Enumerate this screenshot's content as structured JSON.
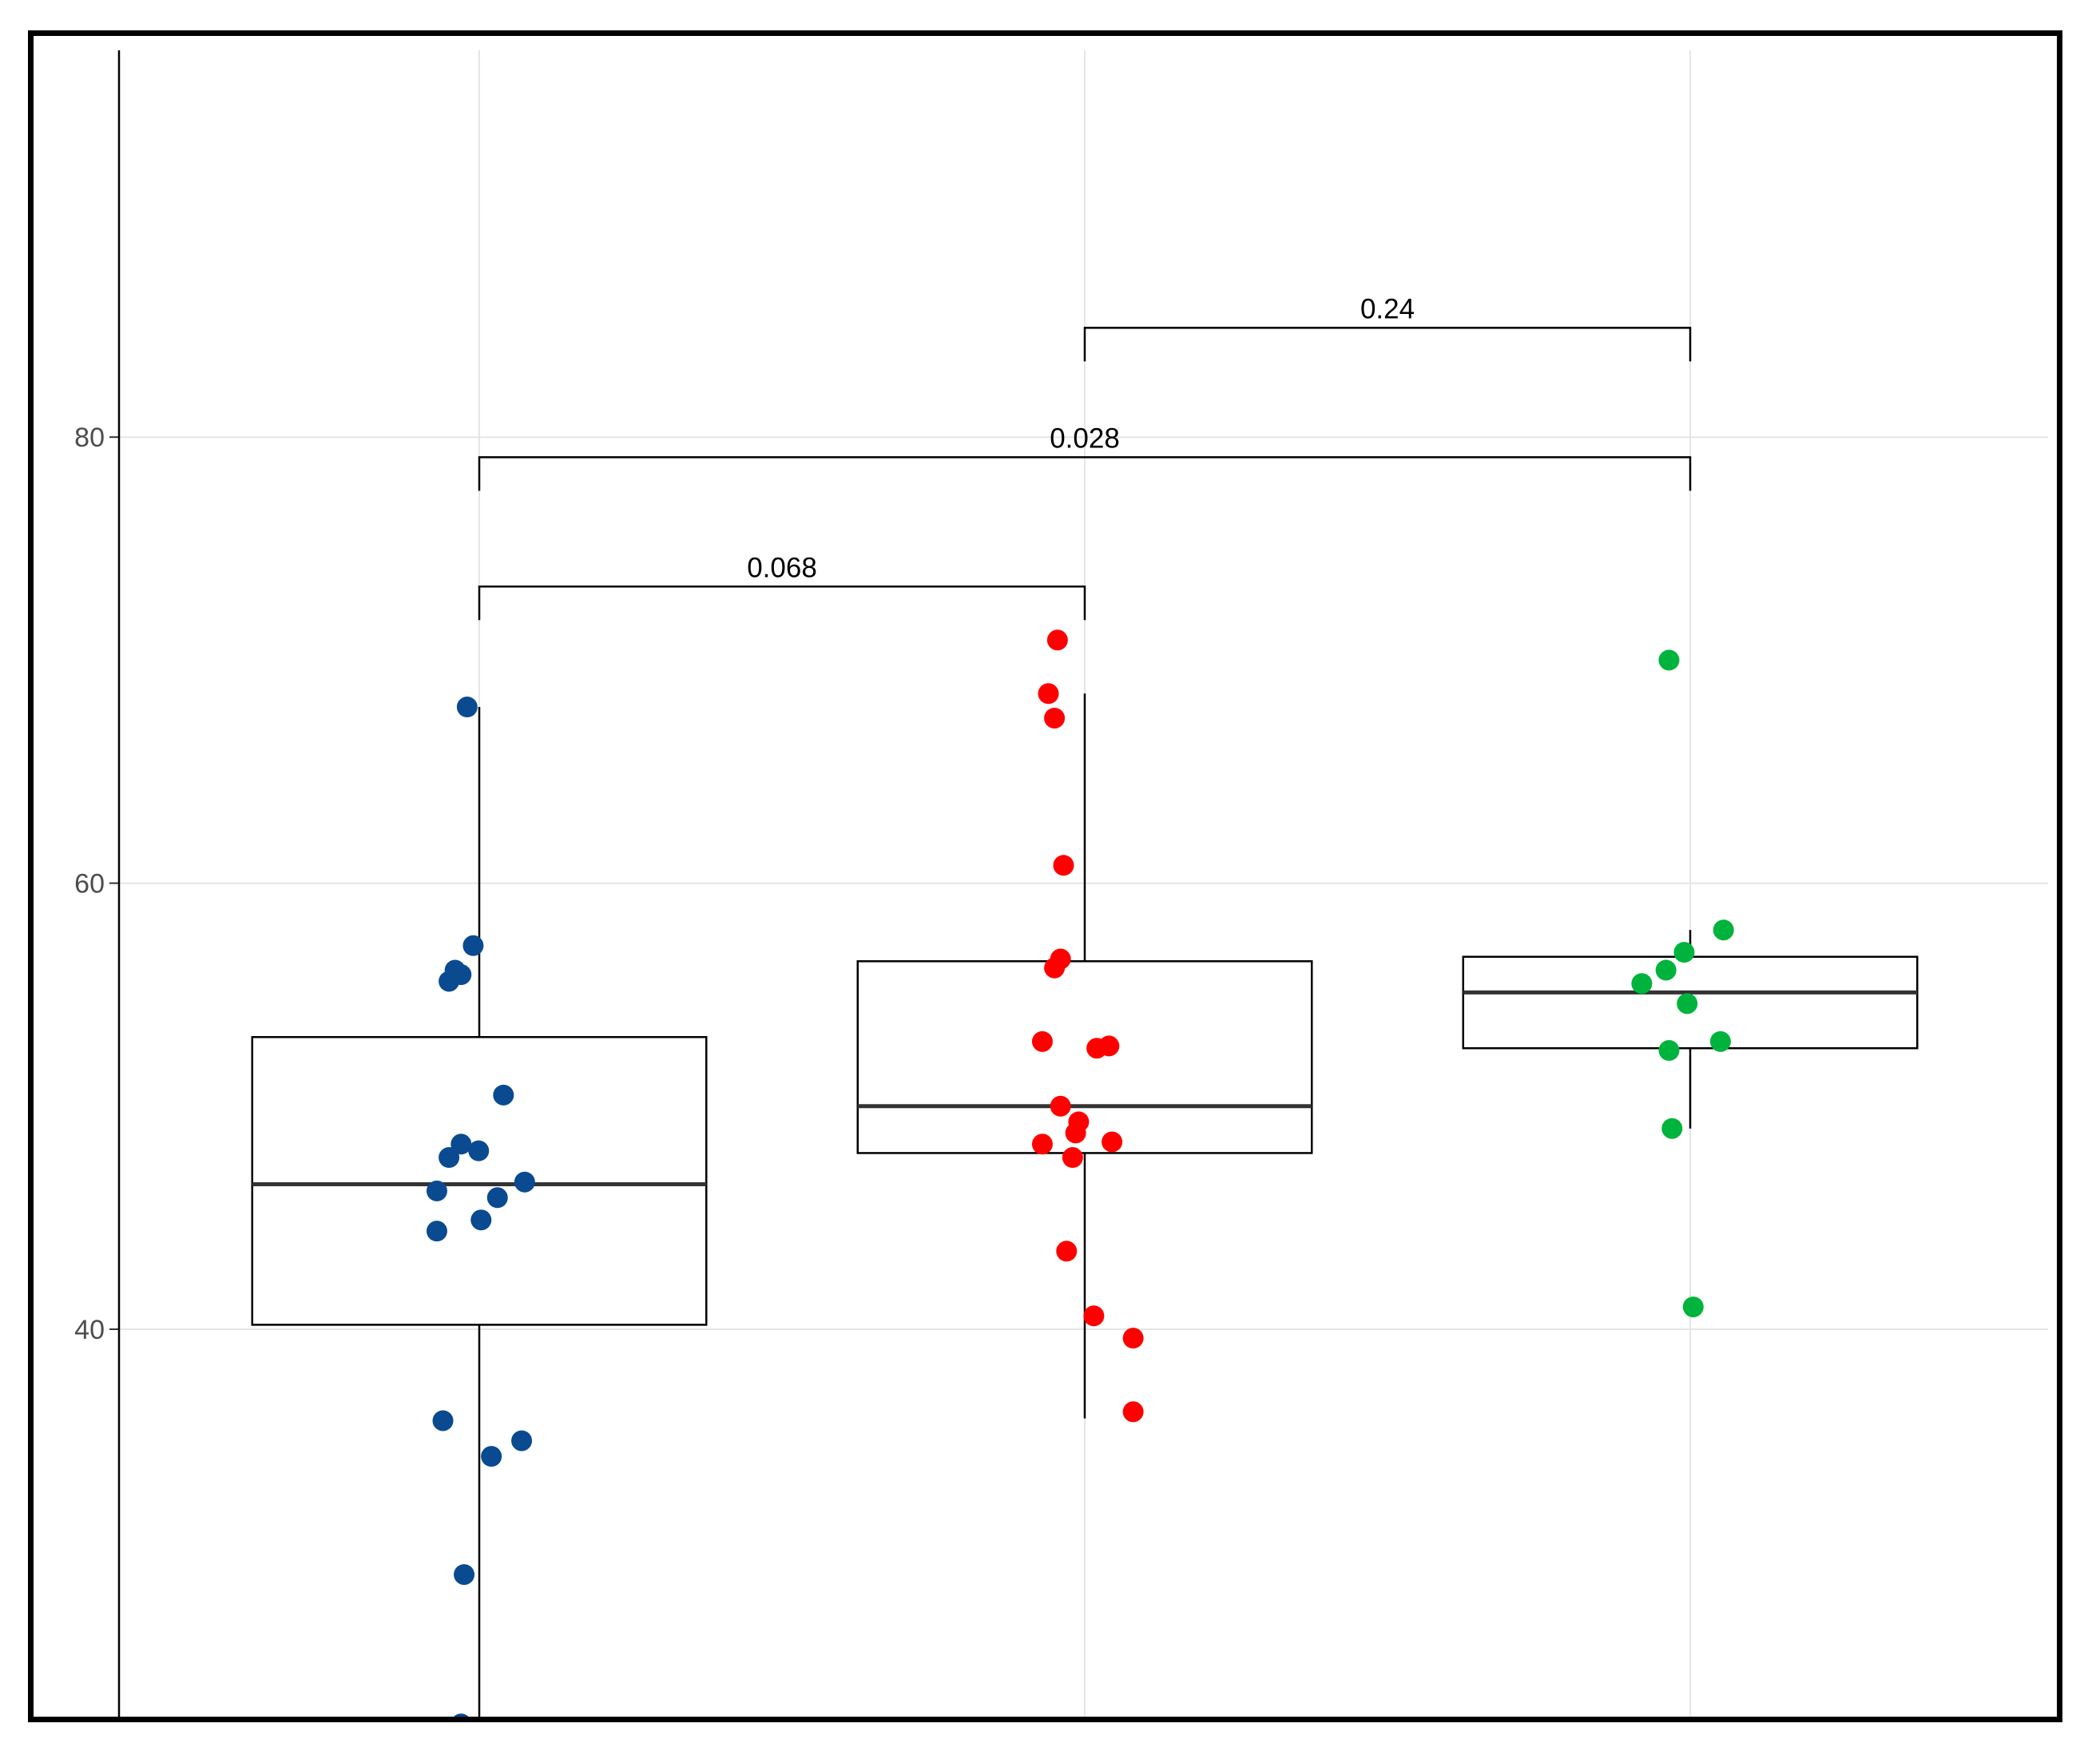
{
  "chart_data": {
    "type": "boxplot",
    "title": "",
    "xlabel": "",
    "ylabel": "",
    "ylim": [
      22.3,
      97.5
    ],
    "y_ticks": [
      40,
      60,
      80
    ],
    "grid": true,
    "groups": [
      {
        "color": "#0a4a91",
        "box": {
          "whisker_low": 22.3,
          "q1": 40.2,
          "median": 46.5,
          "q3": 53.1,
          "whisker_high": 67.9
        },
        "points": [
          [
            -0.02,
            67.9
          ],
          [
            -0.01,
            57.2
          ],
          [
            -0.04,
            56.1
          ],
          [
            -0.03,
            55.9
          ],
          [
            -0.05,
            55.6
          ],
          [
            0.04,
            50.5
          ],
          [
            -0.03,
            48.3
          ],
          [
            -0.05,
            47.7
          ],
          [
            -0.001,
            48.0
          ],
          [
            0.075,
            46.6
          ],
          [
            -0.07,
            46.2
          ],
          [
            0.03,
            45.9
          ],
          [
            0.003,
            44.9
          ],
          [
            -0.07,
            44.4
          ],
          [
            -0.06,
            35.9
          ],
          [
            0.07,
            35.0
          ],
          [
            0.02,
            34.3
          ],
          [
            -0.025,
            29.0
          ],
          [
            -0.03,
            22.3
          ]
        ]
      },
      {
        "color": "#ff0000",
        "box": {
          "whisker_low": 36.0,
          "q1": 47.9,
          "median": 50.0,
          "q3": 56.5,
          "whisker_high": 68.5
        },
        "points": [
          [
            -0.045,
            70.9
          ],
          [
            -0.06,
            68.5
          ],
          [
            -0.05,
            67.4
          ],
          [
            -0.035,
            60.8
          ],
          [
            -0.04,
            56.6
          ],
          [
            -0.05,
            56.2
          ],
          [
            -0.07,
            52.9
          ],
          [
            0.02,
            52.6
          ],
          [
            0.04,
            52.7
          ],
          [
            -0.04,
            50.0
          ],
          [
            -0.01,
            49.3
          ],
          [
            -0.015,
            48.8
          ],
          [
            0.045,
            48.4
          ],
          [
            -0.07,
            48.3
          ],
          [
            -0.02,
            47.7
          ],
          [
            -0.03,
            43.5
          ],
          [
            0.015,
            40.6
          ],
          [
            0.08,
            39.6
          ],
          [
            0.08,
            36.3
          ]
        ]
      },
      {
        "color": "#00b33c",
        "box": {
          "whisker_low": 49.0,
          "q1": 52.6,
          "median": 55.1,
          "q3": 56.7,
          "whisker_high": 57.9
        },
        "points": [
          [
            -0.035,
            70.0
          ],
          [
            0.055,
            57.9
          ],
          [
            -0.01,
            56.9
          ],
          [
            -0.04,
            56.1
          ],
          [
            -0.08,
            55.5
          ],
          [
            -0.005,
            54.6
          ],
          [
            0.05,
            52.9
          ],
          [
            -0.035,
            52.5
          ],
          [
            -0.03,
            49.0
          ],
          [
            0.005,
            41.0
          ]
        ]
      }
    ],
    "comparisons": [
      {
        "groups": [
          1,
          2
        ],
        "y": 73.3,
        "label": "0.068"
      },
      {
        "groups": [
          1,
          3
        ],
        "y": 79.1,
        "label": "0.028"
      },
      {
        "groups": [
          2,
          3
        ],
        "y": 84.9,
        "label": "0.24"
      }
    ]
  }
}
